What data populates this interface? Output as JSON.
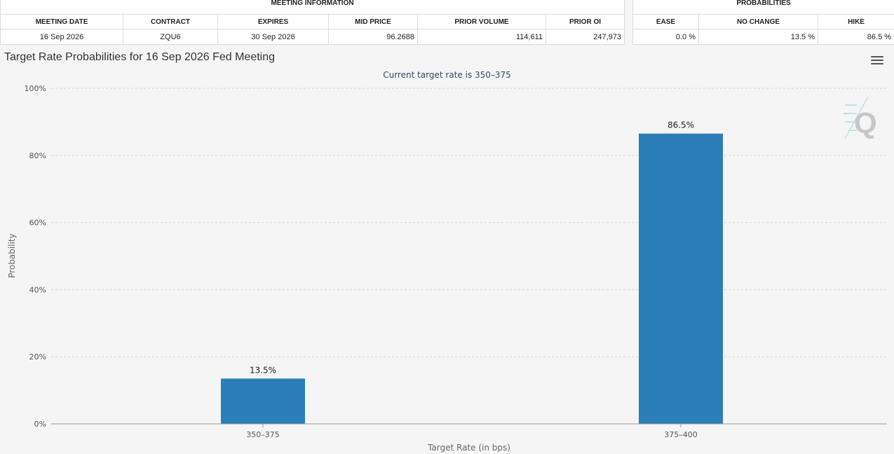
{
  "meeting_information": {
    "group_title": "MEETING INFORMATION",
    "headers": [
      "MEETING DATE",
      "CONTRACT",
      "EXPIRES",
      "MID PRICE",
      "PRIOR VOLUME",
      "PRIOR OI"
    ],
    "values": [
      "16 Sep 2026",
      "ZQU6",
      "30 Sep 2026",
      "96.2688",
      "114,611",
      "247,973"
    ]
  },
  "probabilities": {
    "group_title": "PROBABILITIES",
    "headers": [
      "EASE",
      "NO CHANGE",
      "HIKE"
    ],
    "values": [
      "0.0 %",
      "13.5 %",
      "86.5 %"
    ]
  },
  "chart_menu_icon": "hamburger-menu-icon",
  "watermark_icon": "cme-q-logo",
  "colors": {
    "bar": "#2a7fb8",
    "grid": "#d8d8d8",
    "axis": "#999999"
  },
  "chart_data": {
    "type": "bar",
    "title": "Target Rate Probabilities for 16 Sep 2026 Fed Meeting",
    "subtitle": "Current target rate is 350–375",
    "xlabel": "Target Rate (in bps)",
    "ylabel": "Probability",
    "categories": [
      "350–375",
      "375–400"
    ],
    "values": [
      13.5,
      86.5
    ],
    "data_labels": [
      "13.5%",
      "86.5%"
    ],
    "ylim": [
      0,
      100
    ],
    "yticks": [
      "0%",
      "20%",
      "40%",
      "60%",
      "80%",
      "100%"
    ],
    "grid": true,
    "legend": "none"
  }
}
